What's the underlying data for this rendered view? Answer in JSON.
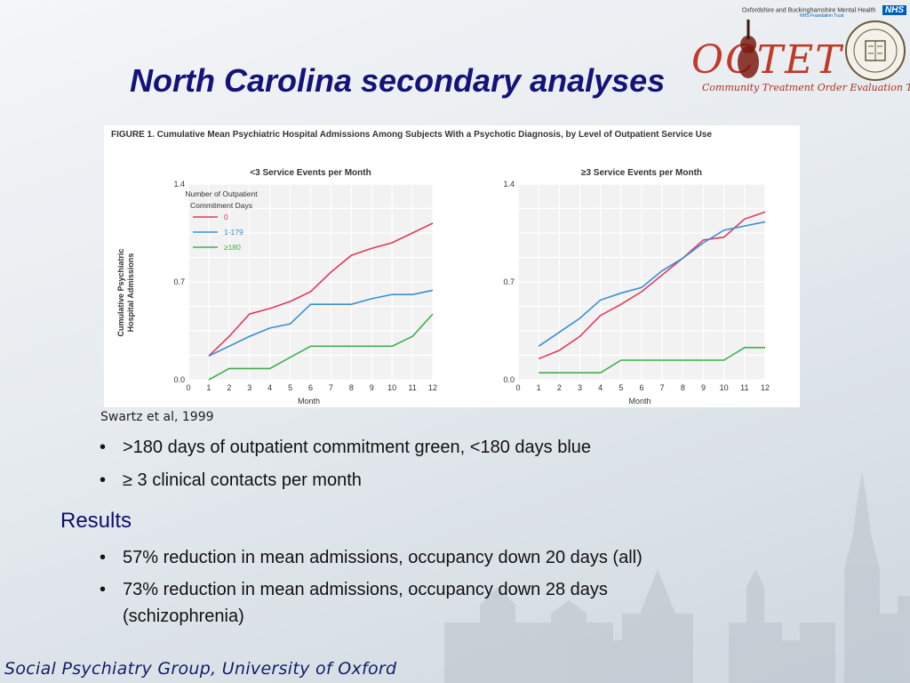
{
  "slide": {
    "title": "North Carolina secondary analyses",
    "citation": "Swartz et al, 1999",
    "bullets": [
      ">180 days of outpatient commitment green, <180 days blue",
      "≥ 3 clinical contacts per month"
    ],
    "results_heading": "Results",
    "results_bullets": [
      "57% reduction in mean admissions, occupancy down 20 days (all)",
      "73% reduction in mean admissions, occupancy down 28 days",
      "(schizophrenia)"
    ],
    "bullet_glyph": "•",
    "footer": "Social Psychiatry Group, University of Oxford"
  },
  "logos": {
    "nhs_trust": "Oxfordshire and Buckinghamshire Mental Health",
    "nhs_badge": "NHS",
    "nhs_sub": "NHS Foundation Trust",
    "octet": "OCTET",
    "octet_subtitle": "Community Treatment Order Evaluation Trial"
  },
  "figure": {
    "caption": "FIGURE 1. Cumulative Mean Psychiatric Hospital Admissions Among Subjects With a Psychotic Diagnosis, by Level of Outpatient Service Use"
  },
  "chart_data": [
    {
      "type": "line",
      "title": "<3 Service Events per Month",
      "xlabel": "Month",
      "ylabel": "Cumulative Psychiatric Hospital Admissions",
      "x": [
        1,
        2,
        3,
        4,
        5,
        6,
        7,
        8,
        9,
        10,
        11,
        12
      ],
      "x_ticks": [
        0,
        1,
        2,
        3,
        4,
        5,
        6,
        7,
        8,
        9,
        10,
        11,
        12
      ],
      "y_ticks": [
        "0.0",
        "0.7",
        "1.4"
      ],
      "ylim": [
        0,
        1.4
      ],
      "legend": {
        "title": "Number of Outpatient Commitment Days",
        "position": "top-left"
      },
      "grid": true,
      "series": [
        {
          "name": "0",
          "color": "#e03a5c",
          "values": [
            0.17,
            0.31,
            0.47,
            0.51,
            0.56,
            0.63,
            0.77,
            0.89,
            0.94,
            0.98,
            1.05,
            1.12
          ]
        },
        {
          "name": "1-179",
          "color": "#3a8fd0",
          "values": [
            0.17,
            0.24,
            0.31,
            0.37,
            0.4,
            0.54,
            0.54,
            0.54,
            0.58,
            0.61,
            0.61,
            0.64
          ]
        },
        {
          "name": "≥180",
          "color": "#3faf4f",
          "values": [
            0.0,
            0.08,
            0.08,
            0.08,
            0.16,
            0.24,
            0.24,
            0.24,
            0.24,
            0.24,
            0.31,
            0.47
          ]
        }
      ]
    },
    {
      "type": "line",
      "title": "≥3 Service Events per Month",
      "xlabel": "Month",
      "x": [
        1,
        2,
        3,
        4,
        5,
        6,
        7,
        8,
        9,
        10,
        11,
        12
      ],
      "x_ticks": [
        0,
        1,
        2,
        3,
        4,
        5,
        6,
        7,
        8,
        9,
        10,
        11,
        12
      ],
      "y_ticks": [
        "0.0",
        "0.7",
        "1.4"
      ],
      "ylim": [
        0,
        1.4
      ],
      "grid": true,
      "series": [
        {
          "name": "0",
          "color": "#e03a5c",
          "values": [
            0.15,
            0.21,
            0.31,
            0.46,
            0.54,
            0.63,
            0.75,
            0.87,
            1.0,
            1.02,
            1.15,
            1.2
          ]
        },
        {
          "name": "1-179",
          "color": "#3a8fd0",
          "values": [
            0.24,
            0.34,
            0.44,
            0.57,
            0.62,
            0.66,
            0.78,
            0.87,
            0.98,
            1.07,
            1.1,
            1.13
          ]
        },
        {
          "name": "≥180",
          "color": "#3faf4f",
          "values": [
            0.05,
            0.05,
            0.05,
            0.05,
            0.14,
            0.14,
            0.14,
            0.14,
            0.14,
            0.14,
            0.23,
            0.23
          ]
        }
      ]
    }
  ]
}
